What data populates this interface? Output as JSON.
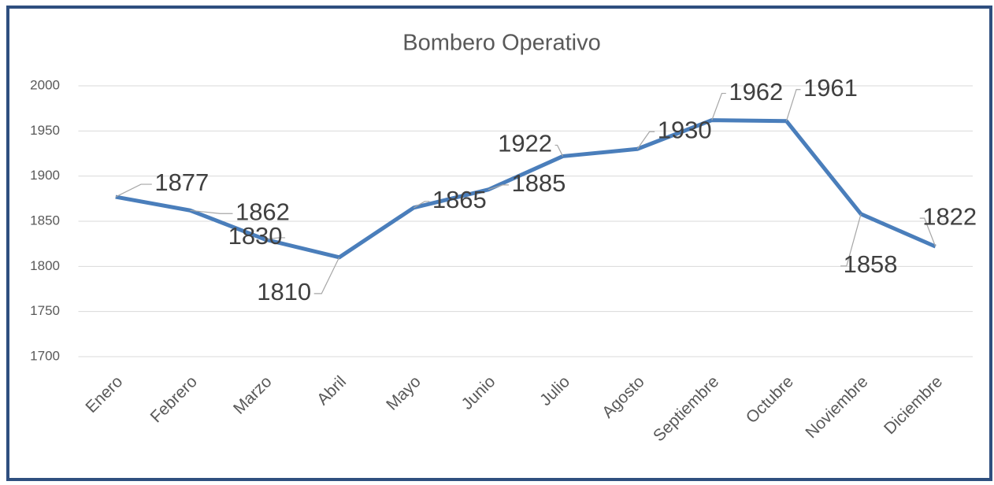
{
  "chart_data": {
    "type": "line",
    "title": "Bombero Operativo",
    "categories": [
      "Enero",
      "Febrero",
      "Marzo",
      "Abril",
      "Mayo",
      "Junio",
      "Julio",
      "Agosto",
      "Septiembre",
      "Octubre",
      "Noviembre",
      "Diciembre"
    ],
    "values": [
      1877,
      1862,
      1830,
      1810,
      1865,
      1885,
      1922,
      1930,
      1962,
      1961,
      1858,
      1822
    ],
    "color": "#4a7ebb",
    "ylim": [
      1700,
      2000
    ],
    "yticks": [
      1700,
      1750,
      1800,
      1850,
      1900,
      1950,
      2000
    ],
    "grid": true
  }
}
